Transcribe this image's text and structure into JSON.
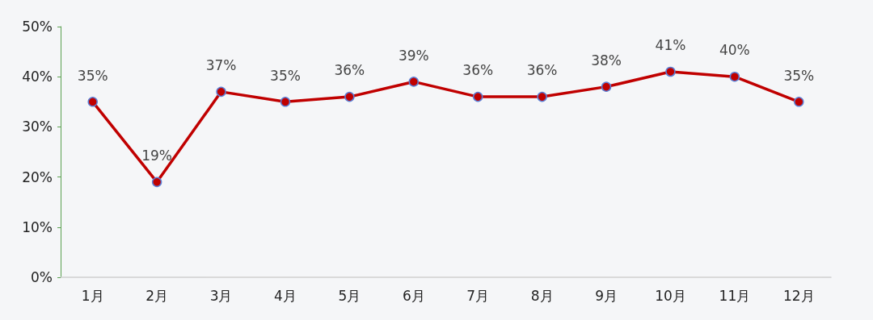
{
  "chart_data": {
    "type": "line",
    "categories": [
      "1月",
      "2月",
      "3月",
      "4月",
      "5月",
      "6月",
      "7月",
      "8月",
      "9月",
      "10月",
      "11月",
      "12月"
    ],
    "series": [
      {
        "color": "#c00000",
        "values": [
          35,
          19,
          37,
          35,
          36,
          39,
          36,
          36,
          38,
          41,
          40,
          35
        ],
        "value_labels": [
          "35%",
          "19%",
          "37%",
          "35%",
          "36%",
          "39%",
          "36%",
          "36%",
          "38%",
          "41%",
          "40%",
          "35%"
        ]
      }
    ],
    "ylim": [
      0,
      50
    ],
    "yticks": [
      {
        "value": 0,
        "label": "0%"
      },
      {
        "value": 10,
        "label": "10%"
      },
      {
        "value": 20,
        "label": "20%"
      },
      {
        "value": 30,
        "label": "30%"
      },
      {
        "value": 40,
        "label": "40%"
      },
      {
        "value": 50,
        "label": "50%"
      }
    ],
    "grid": false,
    "marker": "circle",
    "line_style": "solid"
  }
}
